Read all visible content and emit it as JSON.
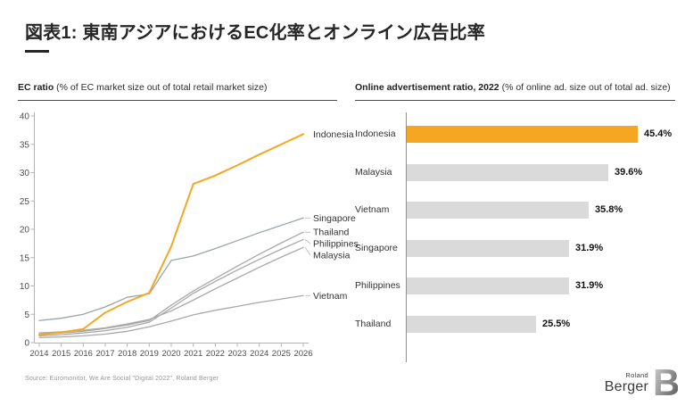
{
  "title": "図表1: 東南アジアにおけるEC化率とオンライン広告比率",
  "panels": {
    "left": {
      "header_bold": "EC ratio",
      "header_rest": " (% of EC market size out of total retail market size)"
    },
    "right": {
      "header_bold": "Online advertisement ratio, 2022",
      "header_rest": " (% of online ad. size out of total ad. size)"
    }
  },
  "footer": {
    "source": "Source: Euromonitor, We Are Social \"Digital 2022\", Roland Berger"
  },
  "logo": {
    "top": "Roland",
    "bottom": "Berger",
    "mark": "B"
  },
  "colors": {
    "accent_orange": "#F5A623",
    "gray_line": "#A8A8A8",
    "singapore_line": "#9AA4AC",
    "gray_bar": "#DADADA",
    "axis": "#B3B3B3",
    "tick_text": "#4d4d4d",
    "label_text": "#333333"
  },
  "chart_data": [
    {
      "type": "line",
      "title": "EC ratio (% of EC market size out of total retail market size)",
      "x": [
        2014,
        2015,
        2016,
        2017,
        2018,
        2019,
        2020,
        2021,
        2022,
        2023,
        2024,
        2025,
        2026
      ],
      "ylim": [
        0,
        40
      ],
      "yticks": [
        0,
        5,
        10,
        15,
        20,
        25,
        30,
        35,
        40
      ],
      "grid": false,
      "legend_position": "right-end-labels",
      "series": [
        {
          "name": "Indonesia",
          "color": "#F5A623",
          "highlight": true,
          "values": [
            1.4,
            1.8,
            2.4,
            5.3,
            7.2,
            8.8,
            17.0,
            28.0,
            29.5,
            31.3,
            33.2,
            35.0,
            36.8
          ]
        },
        {
          "name": "Singapore",
          "color": "#9AA4AC",
          "highlight": false,
          "values": [
            3.9,
            4.3,
            5.0,
            6.3,
            8.0,
            8.6,
            14.5,
            15.3,
            16.6,
            18.0,
            19.4,
            20.7,
            22.0
          ]
        },
        {
          "name": "Thailand",
          "color": "#A8A8A8",
          "highlight": false,
          "values": [
            1.5,
            1.7,
            2.0,
            2.5,
            3.1,
            3.9,
            6.6,
            9.1,
            11.3,
            13.5,
            15.6,
            17.6,
            19.5
          ]
        },
        {
          "name": "Philippines",
          "color": "#A8A8A8",
          "highlight": false,
          "values": [
            1.2,
            1.4,
            1.7,
            2.1,
            2.7,
            3.6,
            6.1,
            8.7,
            10.8,
            12.8,
            14.7,
            16.5,
            18.2
          ]
        },
        {
          "name": "Malaysia",
          "color": "#A8A8A8",
          "highlight": false,
          "values": [
            1.7,
            1.9,
            2.2,
            2.6,
            3.3,
            4.1,
            5.6,
            7.5,
            9.5,
            11.4,
            13.3,
            15.1,
            16.8
          ]
        },
        {
          "name": "Vietnam",
          "color": "#A8A8A8",
          "highlight": false,
          "values": [
            0.9,
            1.0,
            1.2,
            1.5,
            2.0,
            2.8,
            3.8,
            4.9,
            5.7,
            6.4,
            7.1,
            7.7,
            8.3
          ]
        }
      ]
    },
    {
      "type": "bar",
      "orientation": "horizontal",
      "title": "Online advertisement ratio, 2022 (% of online ad. size out of total ad. size)",
      "categories": [
        "Indonesia",
        "Malaysia",
        "Vietnam",
        "Singapore",
        "Philippines",
        "Thailand"
      ],
      "values": [
        45.4,
        39.6,
        35.8,
        31.9,
        31.9,
        25.5
      ],
      "value_labels": [
        "45.4%",
        "39.6%",
        "35.8%",
        "31.9%",
        "31.9%",
        "25.5%"
      ],
      "highlight_index": 0,
      "xlim": [
        0,
        50
      ]
    }
  ]
}
